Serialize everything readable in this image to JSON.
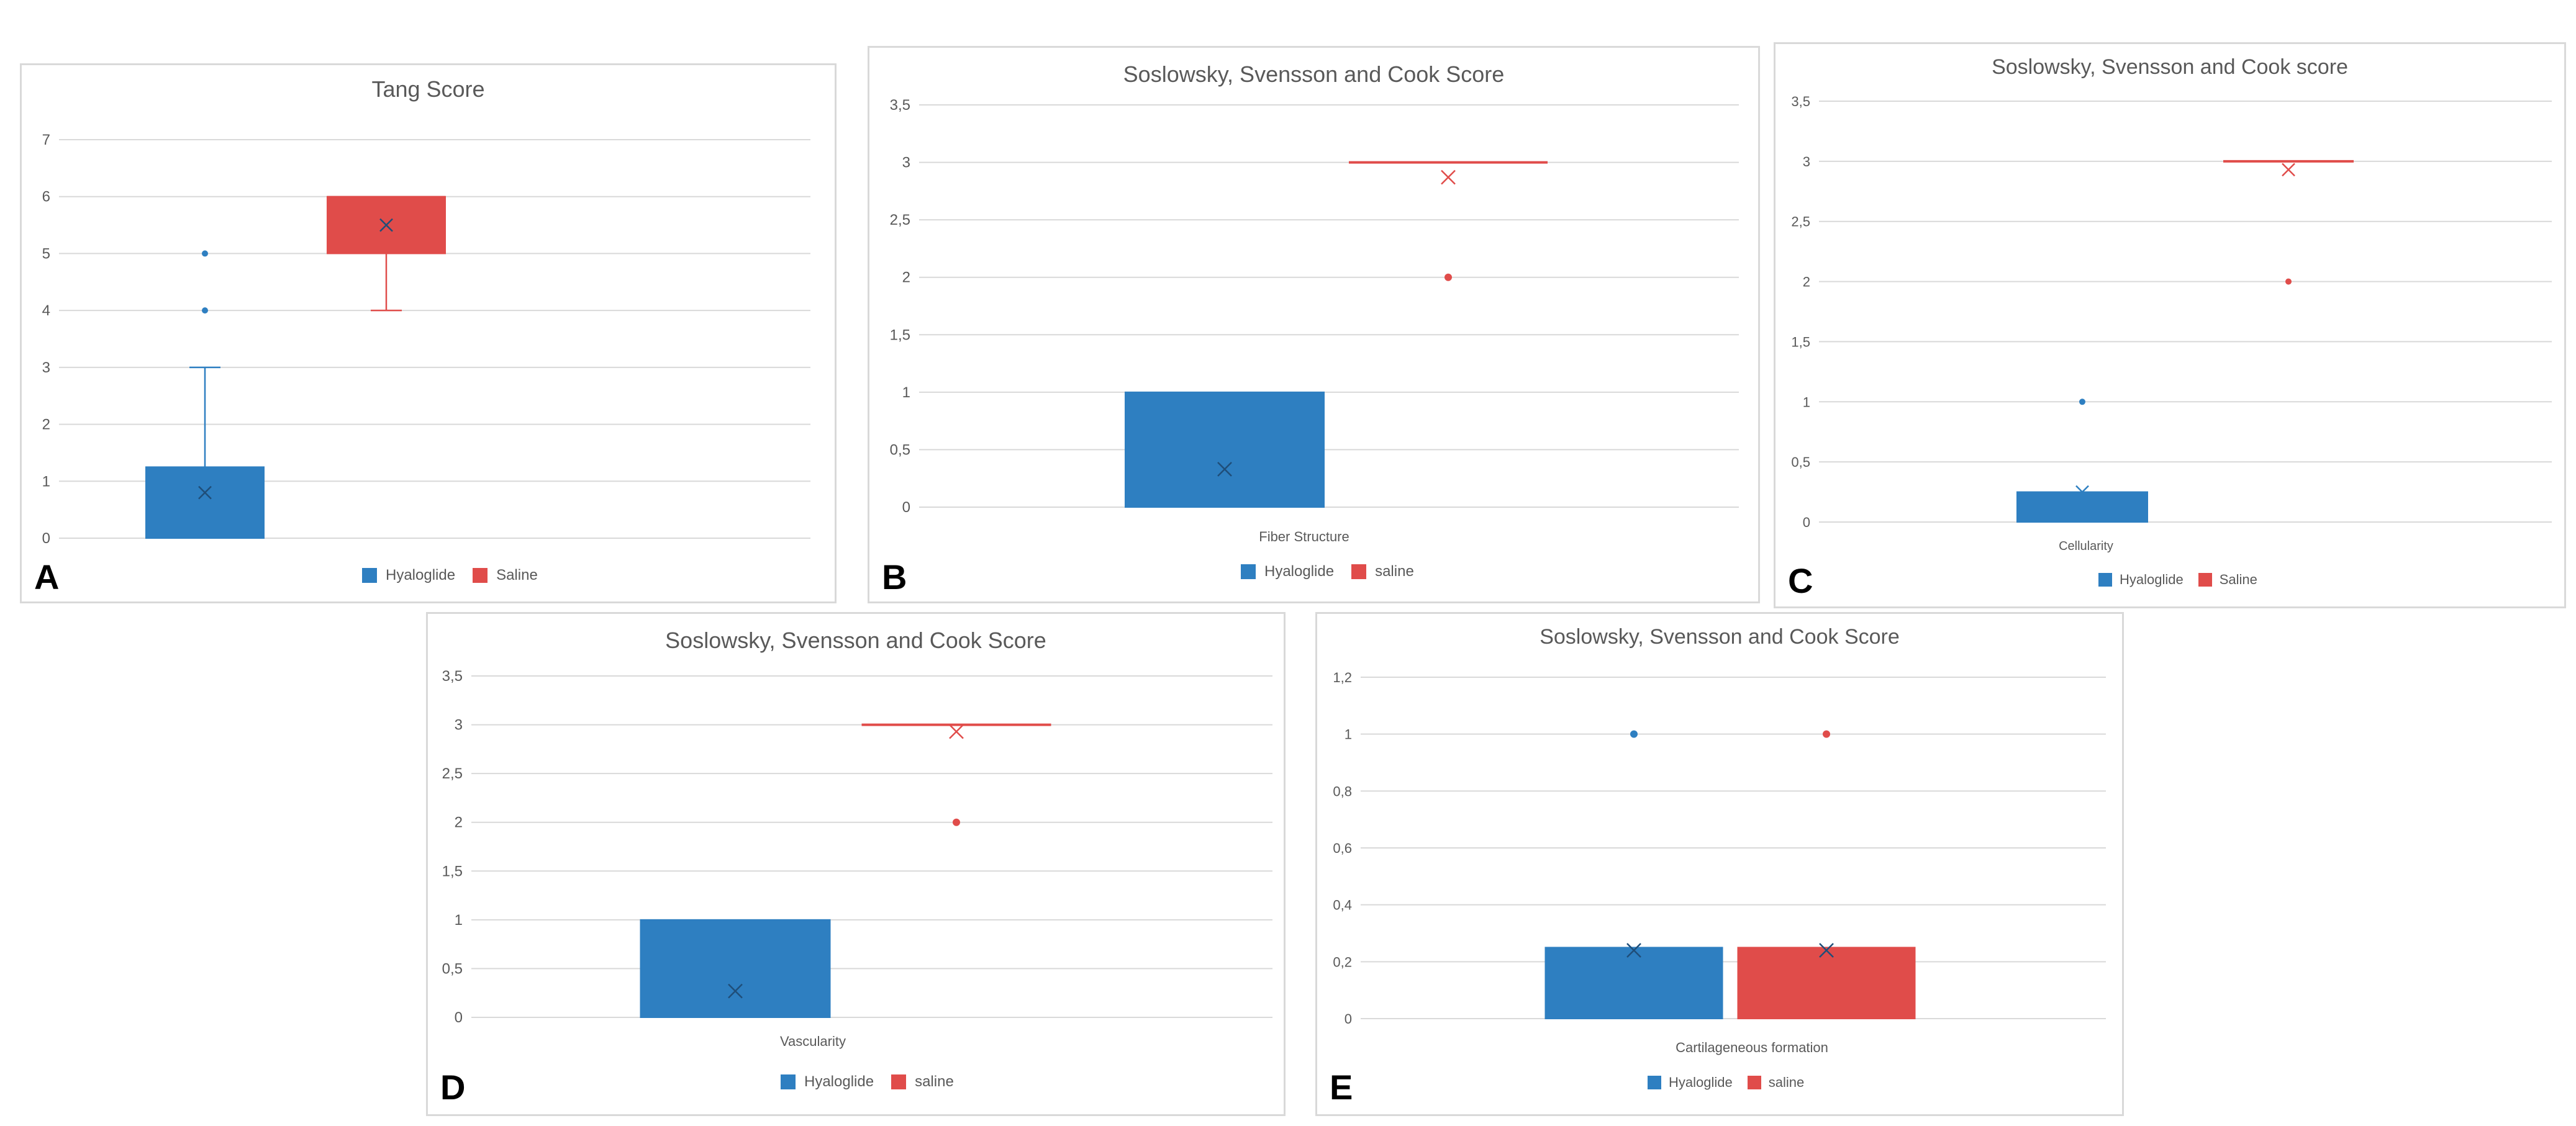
{
  "colors": {
    "hyaloglide": "#2e7fc1",
    "saline": "#e04c4a",
    "grid": "#d9d9d9",
    "axis_text": "#595959"
  },
  "chart_data": [
    {
      "panel": "A",
      "type": "box",
      "title": "Tang Score",
      "category_label": "",
      "ylim": [
        0,
        7
      ],
      "yticks": [
        "0",
        "1",
        "2",
        "3",
        "4",
        "5",
        "6",
        "7"
      ],
      "legend": [
        "Hyaloglide",
        "Saline"
      ],
      "series": [
        {
          "name": "Hyaloglide",
          "q1": 0,
          "q3": 1.25,
          "median": 0,
          "mean": 0.8,
          "whisker_low": 0,
          "whisker_high": 3,
          "outliers": [
            4,
            5
          ]
        },
        {
          "name": "Saline",
          "q1": 5,
          "q3": 6,
          "median": 6,
          "mean": 5.5,
          "whisker_low": 4,
          "whisker_high": 6,
          "outliers": []
        }
      ]
    },
    {
      "panel": "B",
      "type": "box",
      "title": "Soslowsky, Svensson and Cook Score",
      "category_label": "Fiber Structure",
      "ylim": [
        0,
        3.5
      ],
      "yticks": [
        "0",
        "0,5",
        "1",
        "1,5",
        "2",
        "2,5",
        "3",
        "3,5"
      ],
      "legend": [
        "Hyaloglide",
        "saline"
      ],
      "series": [
        {
          "name": "Hyaloglide",
          "q1": 0,
          "q3": 1,
          "median": 0,
          "mean": 0.33,
          "whisker_low": 0,
          "whisker_high": 1,
          "outliers": []
        },
        {
          "name": "saline",
          "q1": 3,
          "q3": 3,
          "median": 3,
          "mean": 2.87,
          "whisker_low": 3,
          "whisker_high": 3,
          "outliers": [
            2
          ]
        }
      ]
    },
    {
      "panel": "C",
      "type": "box",
      "title": "Soslowsky, Svensson and Cook score",
      "category_label": "Cellularity",
      "ylim": [
        0,
        3.5
      ],
      "yticks": [
        "0",
        "0,5",
        "1",
        "1,5",
        "2",
        "2,5",
        "3",
        "3,5"
      ],
      "legend": [
        "Hyaloglide",
        "Saline"
      ],
      "series": [
        {
          "name": "Hyaloglide",
          "q1": 0,
          "q3": 0.25,
          "median": 0,
          "mean": 0.25,
          "whisker_low": 0,
          "whisker_high": 0.25,
          "outliers": [
            1
          ]
        },
        {
          "name": "Saline",
          "q1": 3,
          "q3": 3,
          "median": 3,
          "mean": 2.93,
          "whisker_low": 3,
          "whisker_high": 3,
          "outliers": [
            2
          ]
        }
      ]
    },
    {
      "panel": "D",
      "type": "box",
      "title": "Soslowsky, Svensson and Cook Score",
      "category_label": "Vascularity",
      "ylim": [
        0,
        3.5
      ],
      "yticks": [
        "0",
        "0,5",
        "1",
        "1,5",
        "2",
        "2,5",
        "3",
        "3,5"
      ],
      "legend": [
        "Hyaloglide",
        "saline"
      ],
      "series": [
        {
          "name": "Hyaloglide",
          "q1": 0,
          "q3": 1,
          "median": 0,
          "mean": 0.27,
          "whisker_low": 0,
          "whisker_high": 1,
          "outliers": []
        },
        {
          "name": "saline",
          "q1": 3,
          "q3": 3,
          "median": 3,
          "mean": 2.93,
          "whisker_low": 3,
          "whisker_high": 3,
          "outliers": [
            2
          ]
        }
      ]
    },
    {
      "panel": "E",
      "type": "box",
      "title": "Soslowsky, Svensson and Cook Score",
      "category_label": "Cartilageneous formation",
      "ylim": [
        0,
        1.2
      ],
      "yticks": [
        "0",
        "0,2",
        "0,4",
        "0,6",
        "0,8",
        "1",
        "1,2"
      ],
      "legend": [
        "Hyaloglide",
        "saline"
      ],
      "series": [
        {
          "name": "Hyaloglide",
          "q1": 0,
          "q3": 0.25,
          "median": 0,
          "mean": 0.24,
          "whisker_low": 0,
          "whisker_high": 0.25,
          "outliers": [
            1
          ]
        },
        {
          "name": "saline",
          "q1": 0,
          "q3": 0.25,
          "median": 0,
          "mean": 0.24,
          "whisker_low": 0,
          "whisker_high": 0.25,
          "outliers": [
            1
          ]
        }
      ]
    }
  ]
}
